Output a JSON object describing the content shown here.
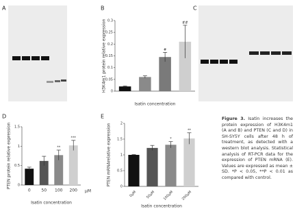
{
  "figure": {
    "panels": [
      "A",
      "B",
      "C",
      "D",
      "E"
    ],
    "caption": {
      "label": "Figure 3.",
      "text": "Isatin increases the protein expression of H3K4m1 (A and B) and PTEN (C and D) in SH-SY5Y cells after 48 h of treatment, as detected with a western blot analysis. Statistical analysis of RT-PCR data for the expression of PTEN mRNA (E). Values are expressed as mean ± SD. *P < 0.05, **P < 0.01 as compared with control."
    }
  },
  "chart_data": [
    {
      "type": "bar",
      "y_label": "H3K4m1 protein relative expression",
      "x_label": "Isatin concentration",
      "categories": [
        null,
        null,
        null,
        null
      ],
      "values": [
        0.02,
        0.06,
        0.145,
        0.21
      ],
      "errors": [
        0.002,
        0.005,
        0.02,
        0.07
      ],
      "colors": [
        "#111111",
        "#8a8a8a",
        "#7a7a7a",
        "#cfcfcf"
      ],
      "annotations": [
        null,
        null,
        "#",
        "##"
      ],
      "ylim": [
        0,
        0.3
      ],
      "yticks": [
        0,
        0.05,
        0.1,
        0.15,
        0.2,
        0.25,
        0.3
      ]
    },
    {
      "type": "bar",
      "y_label": "PTEN protein relative expression",
      "x_label": "Isatin concentration",
      "x_unit": "μM",
      "categories": [
        "0",
        "50",
        "100",
        "200"
      ],
      "values": [
        0.42,
        0.62,
        0.77,
        1.02
      ],
      "errors": [
        0.04,
        0.12,
        0.13,
        0.13
      ],
      "colors": [
        "#111111",
        "#555555",
        "#8a8a8a",
        "#cfcfcf"
      ],
      "annotations": [
        null,
        null,
        "**",
        "***"
      ],
      "ylim": [
        0,
        1.5
      ],
      "yticks": [
        0,
        0.5,
        1,
        1.5
      ]
    },
    {
      "type": "bar",
      "y_label": "PTEN mRNArelative expression",
      "x_label": "Isatin concentration",
      "categories": [
        "0μM",
        "50μM",
        "100μM",
        "200μM"
      ],
      "values": [
        1.0,
        1.22,
        1.32,
        1.52
      ],
      "errors": [
        0.01,
        0.08,
        0.1,
        0.18
      ],
      "colors": [
        "#111111",
        "#555555",
        "#8a8a8a",
        "#cfcfcf"
      ],
      "annotations": [
        null,
        null,
        "*",
        "**"
      ],
      "ylim": [
        0,
        2
      ],
      "yticks": [
        0,
        0.5,
        1,
        1.5,
        2
      ]
    }
  ]
}
